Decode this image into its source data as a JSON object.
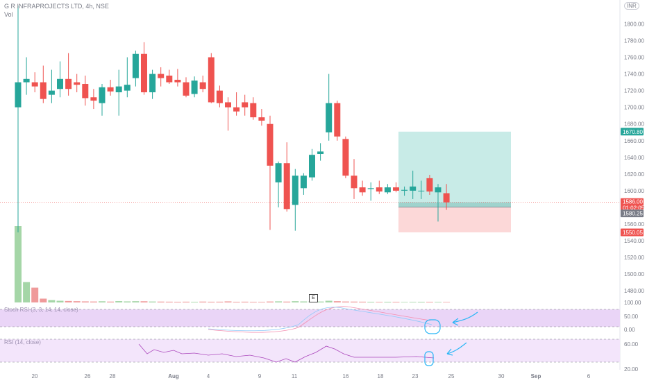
{
  "header": {
    "symbol": "G R INFRAPROJECTS LTD, 4h, NSE",
    "volume_label": "Vol",
    "currency": "INR"
  },
  "panes": {
    "stoch_rsi_label": "Stoch RSI (3, 3, 14, 14, close)",
    "rsi_label": "RSI (14, close)",
    "stoch_ticks": [
      "100.00",
      "50.00",
      "0.00"
    ],
    "rsi_ticks": [
      "60.00",
      "20.00"
    ]
  },
  "earnings_marker": "E",
  "price_labels": {
    "target": "1670.80",
    "current": "1586.00",
    "countdown": "01:02:05",
    "entry": "1580.25",
    "stop": "1550.05"
  },
  "colors": {
    "up": "#26a69a",
    "down": "#ef5350",
    "vol_up": "#a5d6a7",
    "vol_down": "#ef9a9a",
    "pane_bg": "#ead5f7",
    "profit_zone": "#c8ebe7",
    "loss_zone": "#fcd8d8",
    "annotation": "#29b6f6"
  },
  "chart_data": {
    "type": "candlestick",
    "y_axis": {
      "ticks": [
        1800,
        1780,
        1760,
        1740,
        1720,
        1700,
        1680,
        1660,
        1640,
        1620,
        1600,
        1580,
        1560,
        1540,
        1520,
        1500,
        1480
      ],
      "tick_labels": [
        "1800.00",
        "1780.00",
        "1760.00",
        "1740.00",
        "1720.00",
        "1700.00",
        "1680.00",
        "1660.00",
        "1640.00",
        "1620.00",
        "1600.00",
        "1580.00",
        "1560.00",
        "1540.00",
        "1520.00",
        "1500.00",
        "1480.00"
      ],
      "range": [
        1466,
        1822
      ]
    },
    "x_axis": {
      "labels": [
        "20",
        "26",
        "28",
        "Aug",
        "4",
        "9",
        "11",
        "16",
        "18",
        "23",
        "25",
        "30",
        "Sep",
        "6"
      ]
    },
    "candles": [
      {
        "o": 1700,
        "h": 1822,
        "l": 1550,
        "c": 1730
      },
      {
        "o": 1730,
        "h": 1760,
        "l": 1715,
        "c": 1734
      },
      {
        "o": 1730,
        "h": 1742,
        "l": 1718,
        "c": 1725
      },
      {
        "o": 1730,
        "h": 1750,
        "l": 1705,
        "c": 1710
      },
      {
        "o": 1715,
        "h": 1745,
        "l": 1705,
        "c": 1720
      },
      {
        "o": 1722,
        "h": 1755,
        "l": 1712,
        "c": 1734
      },
      {
        "o": 1734,
        "h": 1765,
        "l": 1714,
        "c": 1722
      },
      {
        "o": 1730,
        "h": 1740,
        "l": 1718,
        "c": 1727
      },
      {
        "o": 1728,
        "h": 1738,
        "l": 1702,
        "c": 1711
      },
      {
        "o": 1712,
        "h": 1722,
        "l": 1698,
        "c": 1708
      },
      {
        "o": 1705,
        "h": 1728,
        "l": 1690,
        "c": 1724
      },
      {
        "o": 1724,
        "h": 1733,
        "l": 1714,
        "c": 1719
      },
      {
        "o": 1718,
        "h": 1745,
        "l": 1690,
        "c": 1725
      },
      {
        "o": 1720,
        "h": 1760,
        "l": 1712,
        "c": 1727
      },
      {
        "o": 1735,
        "h": 1768,
        "l": 1725,
        "c": 1764
      },
      {
        "o": 1764,
        "h": 1778,
        "l": 1715,
        "c": 1718
      },
      {
        "o": 1718,
        "h": 1745,
        "l": 1710,
        "c": 1740
      },
      {
        "o": 1740,
        "h": 1748,
        "l": 1725,
        "c": 1735
      },
      {
        "o": 1738,
        "h": 1745,
        "l": 1728,
        "c": 1730
      },
      {
        "o": 1733,
        "h": 1746,
        "l": 1725,
        "c": 1730
      },
      {
        "o": 1730,
        "h": 1736,
        "l": 1712,
        "c": 1714
      },
      {
        "o": 1716,
        "h": 1737,
        "l": 1712,
        "c": 1732
      },
      {
        "o": 1730,
        "h": 1738,
        "l": 1718,
        "c": 1722
      },
      {
        "o": 1760,
        "h": 1765,
        "l": 1705,
        "c": 1706
      },
      {
        "o": 1720,
        "h": 1726,
        "l": 1700,
        "c": 1705
      },
      {
        "o": 1706,
        "h": 1712,
        "l": 1672,
        "c": 1700
      },
      {
        "o": 1700,
        "h": 1718,
        "l": 1690,
        "c": 1695
      },
      {
        "o": 1706,
        "h": 1715,
        "l": 1690,
        "c": 1700
      },
      {
        "o": 1705,
        "h": 1712,
        "l": 1685,
        "c": 1688
      },
      {
        "o": 1688,
        "h": 1698,
        "l": 1678,
        "c": 1684
      },
      {
        "o": 1680,
        "h": 1690,
        "l": 1553,
        "c": 1630
      },
      {
        "o": 1610,
        "h": 1635,
        "l": 1580,
        "c": 1633
      },
      {
        "o": 1633,
        "h": 1658,
        "l": 1575,
        "c": 1578
      },
      {
        "o": 1583,
        "h": 1626,
        "l": 1552,
        "c": 1618
      },
      {
        "o": 1603,
        "h": 1621,
        "l": 1595,
        "c": 1618
      },
      {
        "o": 1616,
        "h": 1650,
        "l": 1612,
        "c": 1643
      },
      {
        "o": 1644,
        "h": 1657,
        "l": 1636,
        "c": 1647
      },
      {
        "o": 1670,
        "h": 1740,
        "l": 1660,
        "c": 1705
      },
      {
        "o": 1705,
        "h": 1708,
        "l": 1660,
        "c": 1665
      },
      {
        "o": 1662,
        "h": 1665,
        "l": 1615,
        "c": 1618
      },
      {
        "o": 1618,
        "h": 1638,
        "l": 1590,
        "c": 1603
      },
      {
        "o": 1604,
        "h": 1612,
        "l": 1594,
        "c": 1598
      },
      {
        "o": 1602,
        "h": 1610,
        "l": 1588,
        "c": 1603
      },
      {
        "o": 1604,
        "h": 1612,
        "l": 1596,
        "c": 1599
      },
      {
        "o": 1598,
        "h": 1608,
        "l": 1596,
        "c": 1604
      },
      {
        "o": 1604,
        "h": 1610,
        "l": 1598,
        "c": 1600
      },
      {
        "o": 1600,
        "h": 1605,
        "l": 1594,
        "c": 1601
      },
      {
        "o": 1600,
        "h": 1624,
        "l": 1590,
        "c": 1605
      },
      {
        "o": 1600,
        "h": 1612,
        "l": 1590,
        "c": 1600
      },
      {
        "o": 1615,
        "h": 1619,
        "l": 1595,
        "c": 1599
      },
      {
        "o": 1598,
        "h": 1608,
        "l": 1563,
        "c": 1604
      },
      {
        "o": 1597,
        "h": 1608,
        "l": 1577,
        "c": 1586
      }
    ],
    "volume": [
      1800,
      480,
      350,
      90,
      55,
      40,
      35,
      30,
      25,
      22,
      28,
      20,
      32,
      25,
      30,
      28,
      22,
      20,
      18,
      16,
      18,
      15,
      20,
      17,
      18,
      25,
      16,
      18,
      15,
      14,
      22,
      26,
      20,
      30,
      24,
      28,
      22,
      40,
      30,
      22,
      20,
      18,
      16,
      14,
      16,
      15,
      12,
      14,
      16,
      15,
      14,
      12
    ],
    "position": {
      "target": 1670.8,
      "entry": 1580.25,
      "stop": 1550.05,
      "current": 1586.0
    }
  }
}
